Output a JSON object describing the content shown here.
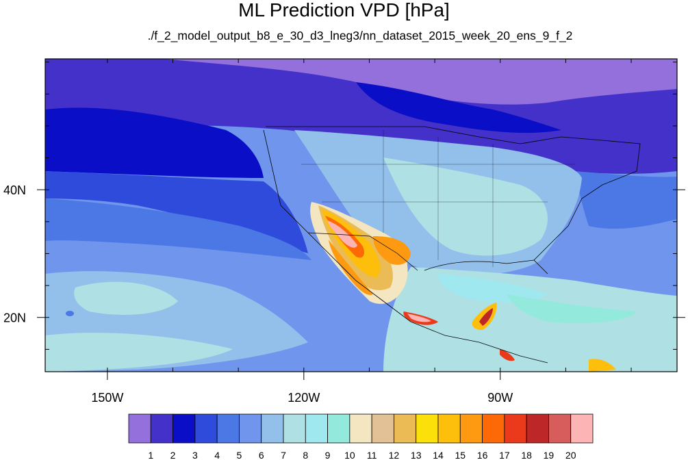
{
  "title": "ML Prediction VPD [hPa]",
  "subtitle": "./f_2_model_output_b8_e_30_d3_lneg3/nn_dataset_2015_week_20_ens_9_f_2",
  "lon_ticks": [
    {
      "value": -150,
      "label": "150W"
    },
    {
      "value": -120,
      "label": "120W"
    },
    {
      "value": -90,
      "label": "90W"
    }
  ],
  "lat_ticks": [
    {
      "value": 40,
      "label": "40N"
    },
    {
      "value": 20,
      "label": "20N"
    }
  ],
  "extent": {
    "lon": [
      -159.5,
      -63
    ],
    "lat": [
      11.5,
      60.5
    ]
  },
  "colorbar": {
    "colors": [
      "#9370db",
      "#4331c9",
      "#0a0ec7",
      "#2f4bdc",
      "#4c78e6",
      "#6f95ec",
      "#92c0eb",
      "#aee0e4",
      "#a0e8ef",
      "#93e9dc",
      "#f3e6c1",
      "#e1c195",
      "#ebbb56",
      "#fbe00a",
      "#fdbf0b",
      "#fd9a11",
      "#fd6907",
      "#ea3a1b",
      "#bd2727",
      "#d75c5c",
      "#fcb4b4"
    ],
    "labels": [
      "1",
      "2",
      "3",
      "4",
      "5",
      "6",
      "7",
      "8",
      "9",
      "10",
      "11",
      "12",
      "13",
      "14",
      "15",
      "16",
      "17",
      "18",
      "19",
      "20"
    ]
  }
}
